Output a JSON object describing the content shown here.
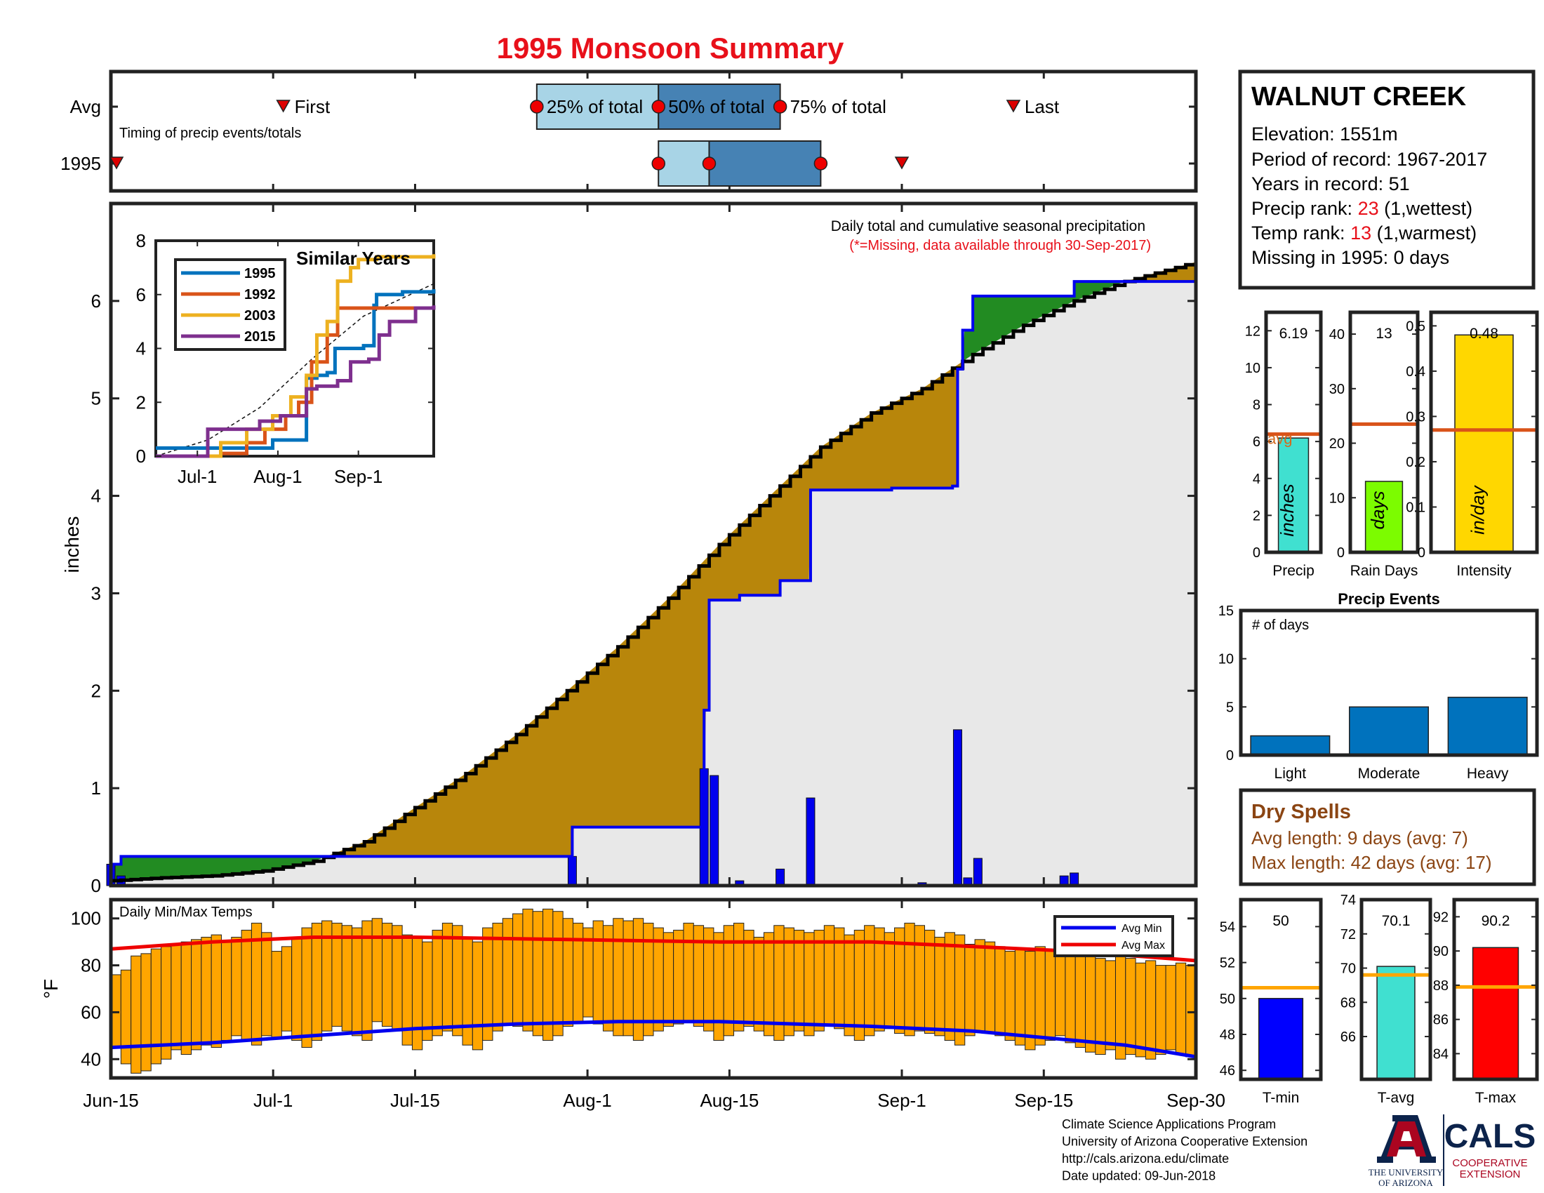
{
  "title": "1995 Monsoon Summary",
  "timing": {
    "row_avg": "Avg",
    "row_year": "1995",
    "caption": "Timing of precip events/totals",
    "first_label": "First",
    "last_label": "Last",
    "p25_label": "25% of total",
    "p50_label": "50% of total",
    "p75_label": "75% of total",
    "avg": {
      "first": 17,
      "p25": 42,
      "p50": 54,
      "p75": 66,
      "last": 89
    },
    "year": {
      "first": 0,
      "p25": 54,
      "p50": 59,
      "p75": 70,
      "last": 78
    }
  },
  "station": {
    "name": "WALNUT CREEK",
    "elevation": "Elevation: 1551m",
    "period": "Period of record: 1967-2017",
    "years": "Years in record: 51",
    "precip_rank_prefix": "Precip rank: ",
    "precip_rank_value": "23",
    "precip_rank_suffix": " (1,wettest)",
    "temp_rank_prefix": "Temp rank: ",
    "temp_rank_value": "13",
    "temp_rank_suffix": " (1,warmest)",
    "missing": "Missing in 1995: 0 days"
  },
  "main_chart": {
    "note": "Daily total and cumulative seasonal precipitation",
    "missing_note": "(*=Missing, data available through 30-Sep-2017)",
    "ylabel": "inches",
    "ylim": [
      0,
      7
    ],
    "y_ticks": [
      0,
      1,
      2,
      3,
      4,
      5,
      6
    ],
    "x_ticks": [
      {
        "label": "Jun-15",
        "day": 0
      },
      {
        "label": "Jul-1",
        "day": 16
      },
      {
        "label": "Jul-15",
        "day": 30
      },
      {
        "label": "Aug-1",
        "day": 47
      },
      {
        "label": "Aug-15",
        "day": 61
      },
      {
        "label": "Sep-1",
        "day": 78
      },
      {
        "label": "Sep-15",
        "day": 92
      },
      {
        "label": "Sep-30",
        "day": 107
      }
    ],
    "avg_cumulative": [
      [
        0,
        0.05
      ],
      [
        5,
        0.08
      ],
      [
        10,
        0.1
      ],
      [
        15,
        0.15
      ],
      [
        20,
        0.25
      ],
      [
        25,
        0.45
      ],
      [
        30,
        0.8
      ],
      [
        35,
        1.15
      ],
      [
        40,
        1.55
      ],
      [
        45,
        2.0
      ],
      [
        50,
        2.45
      ],
      [
        55,
        2.95
      ],
      [
        60,
        3.5
      ],
      [
        65,
        4.0
      ],
      [
        70,
        4.5
      ],
      [
        75,
        4.85
      ],
      [
        80,
        5.1
      ],
      [
        85,
        5.45
      ],
      [
        90,
        5.75
      ],
      [
        95,
        6.0
      ],
      [
        100,
        6.2
      ],
      [
        107,
        6.4
      ]
    ],
    "year_cumulative": [
      [
        0,
        0.22
      ],
      [
        1,
        0.3
      ],
      [
        45,
        0.3
      ],
      [
        45.5,
        0.6
      ],
      [
        58,
        0.6
      ],
      [
        58.5,
        1.8
      ],
      [
        59,
        2.93
      ],
      [
        62,
        2.98
      ],
      [
        66,
        3.13
      ],
      [
        69,
        4.06
      ],
      [
        77,
        4.08
      ],
      [
        83,
        4.1
      ],
      [
        83.5,
        5.3
      ],
      [
        84,
        5.7
      ],
      [
        85,
        6.05
      ],
      [
        94,
        6.05
      ],
      [
        95,
        6.2
      ],
      [
        107,
        6.2
      ]
    ],
    "daily_precip": [
      [
        0,
        0.22
      ],
      [
        1,
        0.1
      ],
      [
        45.5,
        0.3
      ],
      [
        58.5,
        1.2
      ],
      [
        59.5,
        1.13
      ],
      [
        62,
        0.05
      ],
      [
        66,
        0.17
      ],
      [
        69,
        0.9
      ],
      [
        80,
        0.03
      ],
      [
        83.5,
        1.6
      ],
      [
        84.5,
        0.08
      ],
      [
        85.5,
        0.28
      ],
      [
        94,
        0.1
      ],
      [
        95,
        0.13
      ]
    ]
  },
  "similar_years": {
    "title": "Similar Years",
    "ylim": [
      0,
      8
    ],
    "y_ticks": [
      0,
      2,
      4,
      6,
      8
    ],
    "x_ticks": [
      {
        "label": "Jul-1",
        "day": 16
      },
      {
        "label": "Aug-1",
        "day": 47
      },
      {
        "label": "Sep-1",
        "day": 78
      }
    ],
    "series": [
      {
        "name": "1995",
        "color": "#0072bd",
        "points": [
          [
            0,
            0.3
          ],
          [
            1,
            0.3
          ],
          [
            45,
            0.3
          ],
          [
            45,
            0.6
          ],
          [
            58,
            0.6
          ],
          [
            58,
            2.9
          ],
          [
            62,
            3.0
          ],
          [
            66,
            3.1
          ],
          [
            69,
            4.0
          ],
          [
            80,
            4.1
          ],
          [
            83,
            4.1
          ],
          [
            84,
            5.6
          ],
          [
            85,
            6.0
          ],
          [
            95,
            6.1
          ],
          [
            107,
            6.2
          ]
        ]
      },
      {
        "name": "1992",
        "color": "#d95319",
        "points": [
          [
            0,
            0.0
          ],
          [
            20,
            0.0
          ],
          [
            25,
            0.1
          ],
          [
            35,
            0.5
          ],
          [
            42,
            1.0
          ],
          [
            50,
            1.5
          ],
          [
            55,
            2.0
          ],
          [
            60,
            3.5
          ],
          [
            66,
            4.5
          ],
          [
            70,
            5.5
          ],
          [
            107,
            5.5
          ]
        ]
      },
      {
        "name": "2003",
        "color": "#edb120",
        "points": [
          [
            0,
            0.0
          ],
          [
            15,
            0.0
          ],
          [
            25,
            0.5
          ],
          [
            35,
            1.0
          ],
          [
            45,
            1.5
          ],
          [
            52,
            2.2
          ],
          [
            58,
            3.0
          ],
          [
            62,
            4.5
          ],
          [
            66,
            5.0
          ],
          [
            70,
            6.5
          ],
          [
            75,
            7.0
          ],
          [
            78,
            7.3
          ],
          [
            85,
            7.4
          ],
          [
            107,
            7.5
          ]
        ]
      },
      {
        "name": "2015",
        "color": "#7e2f8e",
        "points": [
          [
            0,
            0.0
          ],
          [
            15,
            0.0
          ],
          [
            20,
            1.0
          ],
          [
            30,
            1.0
          ],
          [
            40,
            1.3
          ],
          [
            48,
            1.5
          ],
          [
            55,
            1.5
          ],
          [
            58,
            2.5
          ],
          [
            62,
            2.6
          ],
          [
            70,
            2.8
          ],
          [
            75,
            3.5
          ],
          [
            82,
            3.6
          ],
          [
            86,
            4.5
          ],
          [
            90,
            5.0
          ],
          [
            100,
            5.5
          ],
          [
            107,
            5.6
          ]
        ]
      }
    ],
    "avg_line": [
      [
        0,
        0
      ],
      [
        20,
        0.6
      ],
      [
        40,
        1.8
      ],
      [
        60,
        3.6
      ],
      [
        80,
        5.2
      ],
      [
        107,
        6.4
      ]
    ]
  },
  "temps": {
    "caption": "Daily Min/Max Temps",
    "ylabel": "°F",
    "ylim": [
      32,
      108
    ],
    "y_ticks": [
      40,
      60,
      80,
      100
    ],
    "legend_min": "Avg Min",
    "legend_max": "Avg Max",
    "avg_max": [
      [
        0,
        87
      ],
      [
        10,
        90
      ],
      [
        20,
        92
      ],
      [
        30,
        92
      ],
      [
        45,
        91
      ],
      [
        60,
        90
      ],
      [
        75,
        90
      ],
      [
        85,
        88
      ],
      [
        95,
        86
      ],
      [
        107,
        82
      ]
    ],
    "avg_min": [
      [
        0,
        45
      ],
      [
        10,
        47
      ],
      [
        20,
        50
      ],
      [
        30,
        53
      ],
      [
        40,
        55
      ],
      [
        50,
        56
      ],
      [
        60,
        56
      ],
      [
        75,
        54
      ],
      [
        85,
        52
      ],
      [
        95,
        48
      ],
      [
        100,
        46
      ],
      [
        107,
        41
      ]
    ],
    "daily_max": [
      76,
      78,
      84,
      85,
      87,
      88,
      89,
      90,
      91,
      92,
      93,
      90,
      92,
      95,
      98,
      94,
      86,
      88,
      92,
      96,
      98,
      99,
      98,
      97,
      96,
      99,
      100,
      98,
      97,
      93,
      92,
      90,
      95,
      98,
      97,
      92,
      90,
      96,
      98,
      100,
      102,
      104,
      103,
      104,
      103,
      100,
      98,
      96,
      99,
      97,
      100,
      99,
      100,
      98,
      96,
      94,
      95,
      98,
      97,
      96,
      94,
      97,
      98,
      95,
      92,
      94,
      97,
      96,
      95,
      94,
      95,
      97,
      96,
      93,
      95,
      97,
      96,
      94,
      96,
      98,
      97,
      95,
      92,
      94,
      93,
      89,
      91,
      90,
      88,
      86,
      87,
      86,
      88,
      86,
      85,
      84,
      86,
      84,
      83,
      82,
      84,
      83,
      81,
      82,
      80,
      80,
      81,
      80
    ],
    "daily_min": [
      45,
      38,
      34,
      35,
      38,
      40,
      44,
      42,
      44,
      46,
      45,
      48,
      50,
      48,
      46,
      50,
      49,
      52,
      48,
      45,
      48,
      52,
      54,
      52,
      50,
      48,
      56,
      54,
      52,
      46,
      44,
      48,
      50,
      52,
      50,
      46,
      44,
      48,
      52,
      55,
      54,
      52,
      50,
      48,
      50,
      54,
      56,
      58,
      55,
      52,
      50,
      50,
      48,
      50,
      52,
      54,
      55,
      56,
      54,
      52,
      48,
      50,
      52,
      54,
      52,
      50,
      48,
      50,
      52,
      50,
      52,
      54,
      53,
      50,
      48,
      50,
      52,
      53,
      51,
      50,
      52,
      51,
      50,
      48,
      46,
      50,
      52,
      51,
      50,
      48,
      46,
      44,
      46,
      48,
      50,
      47,
      45,
      43,
      42,
      44,
      40,
      42,
      41,
      40,
      42,
      44,
      42,
      41
    ]
  },
  "precip_bars": {
    "items": [
      {
        "label": "Precip",
        "value": 6.19,
        "value_text": "6.19",
        "avg": 6.4,
        "avg_label": "avg",
        "unit": "inches",
        "color": "#40e0d0",
        "ylim": [
          0,
          13
        ],
        "ticks": [
          0,
          2,
          4,
          6,
          8,
          10,
          12
        ]
      },
      {
        "label": "Rain Days",
        "value": 13,
        "value_text": "13",
        "avg": 23.5,
        "unit": "days",
        "color": "#7cfc00",
        "ylim": [
          0,
          44
        ],
        "ticks": [
          0,
          10,
          20,
          30,
          40
        ]
      },
      {
        "label": "Intensity",
        "value": 0.48,
        "value_text": "0.48",
        "avg": 0.27,
        "unit": "in/day",
        "color": "#ffd700",
        "ylim": [
          0,
          0.53
        ],
        "ticks": [
          0,
          0.1,
          0.2,
          0.3,
          0.4,
          0.5
        ]
      }
    ]
  },
  "precip_events": {
    "title": "Precip Events",
    "ylabel_note": "# of days",
    "ylim": [
      0,
      15
    ],
    "ticks": [
      0,
      5,
      10,
      15
    ],
    "categories": [
      "Light",
      "Moderate",
      "Heavy"
    ],
    "values": [
      2,
      5,
      6
    ],
    "color": "#0072bd"
  },
  "dry_spells": {
    "title": "Dry Spells",
    "avg_length": "Avg length: 9 days (avg: 7)",
    "max_length": "Max length: 42 days (avg: 17)"
  },
  "temp_bars": {
    "items": [
      {
        "label": "T-min",
        "value": 50,
        "value_text": "50",
        "avg": 50.6,
        "color": "#0000ff",
        "ylim": [
          45.5,
          55.5
        ],
        "ticks": [
          46,
          48,
          50,
          52,
          54
        ]
      },
      {
        "label": "T-avg",
        "value": 70.1,
        "value_text": "70.1",
        "avg": 69.6,
        "color": "#40e0d0",
        "ylim": [
          63.5,
          74
        ],
        "ticks": [
          66,
          68,
          70,
          72,
          74
        ]
      },
      {
        "label": "T-max",
        "value": 90.2,
        "value_text": "90.2",
        "avg": 87.9,
        "color": "#ff0000",
        "ylim": [
          82.5,
          93
        ],
        "ticks": [
          84,
          86,
          88,
          90,
          92
        ]
      }
    ]
  },
  "footer": {
    "line1": "Climate Science Applications Program",
    "line2": "University of Arizona Cooperative Extension",
    "line3": "http://cals.arizona.edu/climate",
    "line4": " Date updated: 09-Jun-2018"
  },
  "logos": {
    "ua_line1": "THE UNIVERSITY",
    "ua_line2": "OF ARIZONA",
    "cals_name": "CALS",
    "cals_line1": "COOPERATIVE",
    "cals_line2": "EXTENSION"
  },
  "colors": {
    "accent_red": "#e8101a",
    "brown_fill": "#b8860b",
    "green_fill": "#228b22",
    "gray_fill": "#e8e8e8",
    "blue_line": "#0000ee",
    "orange_bars": "#ffa500",
    "light_blue_box": "#a8d4e6",
    "dark_blue_box": "#4682b4",
    "dry_spell_text": "#8b4513"
  }
}
